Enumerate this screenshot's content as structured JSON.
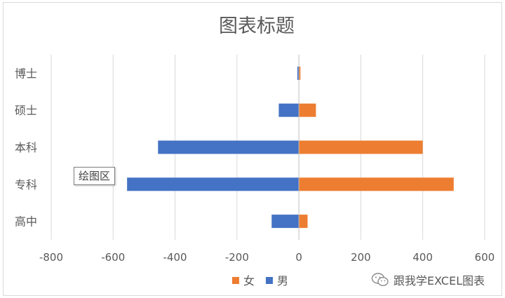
{
  "chart_data": {
    "type": "bar",
    "orientation": "horizontal",
    "title": "图表标题",
    "categories": [
      "高中",
      "专科",
      "本科",
      "硕士",
      "博士"
    ],
    "series": [
      {
        "name": "女",
        "values": [
          28,
          500,
          400,
          55,
          5
        ],
        "color": "#ed7d31"
      },
      {
        "name": "男",
        "values": [
          -88,
          -555,
          -455,
          -65,
          -5
        ],
        "color": "#4472c4"
      }
    ],
    "xlim": [
      -800,
      600
    ],
    "xticks": [
      -800,
      -600,
      -400,
      -200,
      0,
      200,
      400,
      600
    ],
    "grid": true,
    "legend_position": "bottom"
  },
  "tooltip": {
    "text": "绘图区"
  },
  "watermark": {
    "text": "跟我学EXCEL图表",
    "icon": "wechat-icon"
  }
}
